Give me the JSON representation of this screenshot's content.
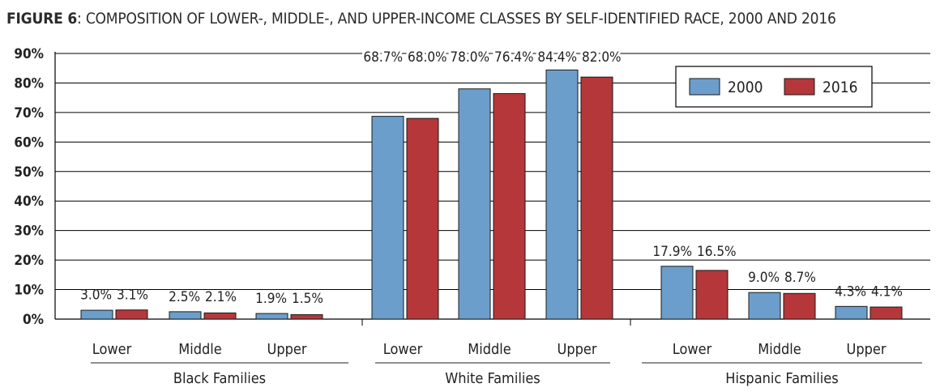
{
  "figure": {
    "label": "FIGURE 6",
    "title": ": COMPOSITION OF LOWER-, MIDDLE-, AND UPPER-INCOME CLASSES BY SELF-IDENTIFIED RACE, 2000 AND 2016"
  },
  "colors": {
    "series_2000": "#6c9ecb",
    "series_2016": "#b5373a",
    "axis": "#000000",
    "grid": "#000000"
  },
  "chart_data": {
    "type": "bar",
    "title": "COMPOSITION OF LOWER-, MIDDLE-, AND UPPER-INCOME CLASSES BY SELF-IDENTIFIED RACE, 2000 AND 2016",
    "ylim": [
      0,
      90
    ],
    "yticks": [
      "0%",
      "10%",
      "20%",
      "30%",
      "40%",
      "50%",
      "60%",
      "70%",
      "80%",
      "90%"
    ],
    "legend_position": "top-right",
    "grid": true,
    "series": [
      {
        "name": "2000",
        "color": "#6c9ecb"
      },
      {
        "name": "2016",
        "color": "#b5373a"
      }
    ],
    "groups": [
      {
        "name": "Black Families",
        "categories": [
          {
            "name": "Lower",
            "values": [
              3.0,
              3.1
            ],
            "labels": [
              "3.0%",
              "3.1%"
            ]
          },
          {
            "name": "Middle",
            "values": [
              2.5,
              2.1
            ],
            "labels": [
              "2.5%",
              "2.1%"
            ]
          },
          {
            "name": "Upper",
            "values": [
              1.9,
              1.5
            ],
            "labels": [
              "1.9%",
              "1.5%"
            ]
          }
        ]
      },
      {
        "name": "White Families",
        "categories": [
          {
            "name": "Lower",
            "values": [
              68.7,
              68.0
            ],
            "labels": [
              "68.7%",
              "68.0%"
            ]
          },
          {
            "name": "Middle",
            "values": [
              78.0,
              76.4
            ],
            "labels": [
              "78.0%",
              "76.4%"
            ]
          },
          {
            "name": "Upper",
            "values": [
              84.4,
              82.0
            ],
            "labels": [
              "84.4%",
              "82.0%"
            ]
          }
        ]
      },
      {
        "name": "Hispanic Families",
        "categories": [
          {
            "name": "Lower",
            "values": [
              17.9,
              16.5
            ],
            "labels": [
              "17.9%",
              "16.5%"
            ]
          },
          {
            "name": "Middle",
            "values": [
              9.0,
              8.7
            ],
            "labels": [
              "9.0%",
              "8.7%"
            ]
          },
          {
            "name": "Upper",
            "values": [
              4.3,
              4.1
            ],
            "labels": [
              "4.3%",
              "4.1%"
            ]
          }
        ]
      }
    ]
  }
}
